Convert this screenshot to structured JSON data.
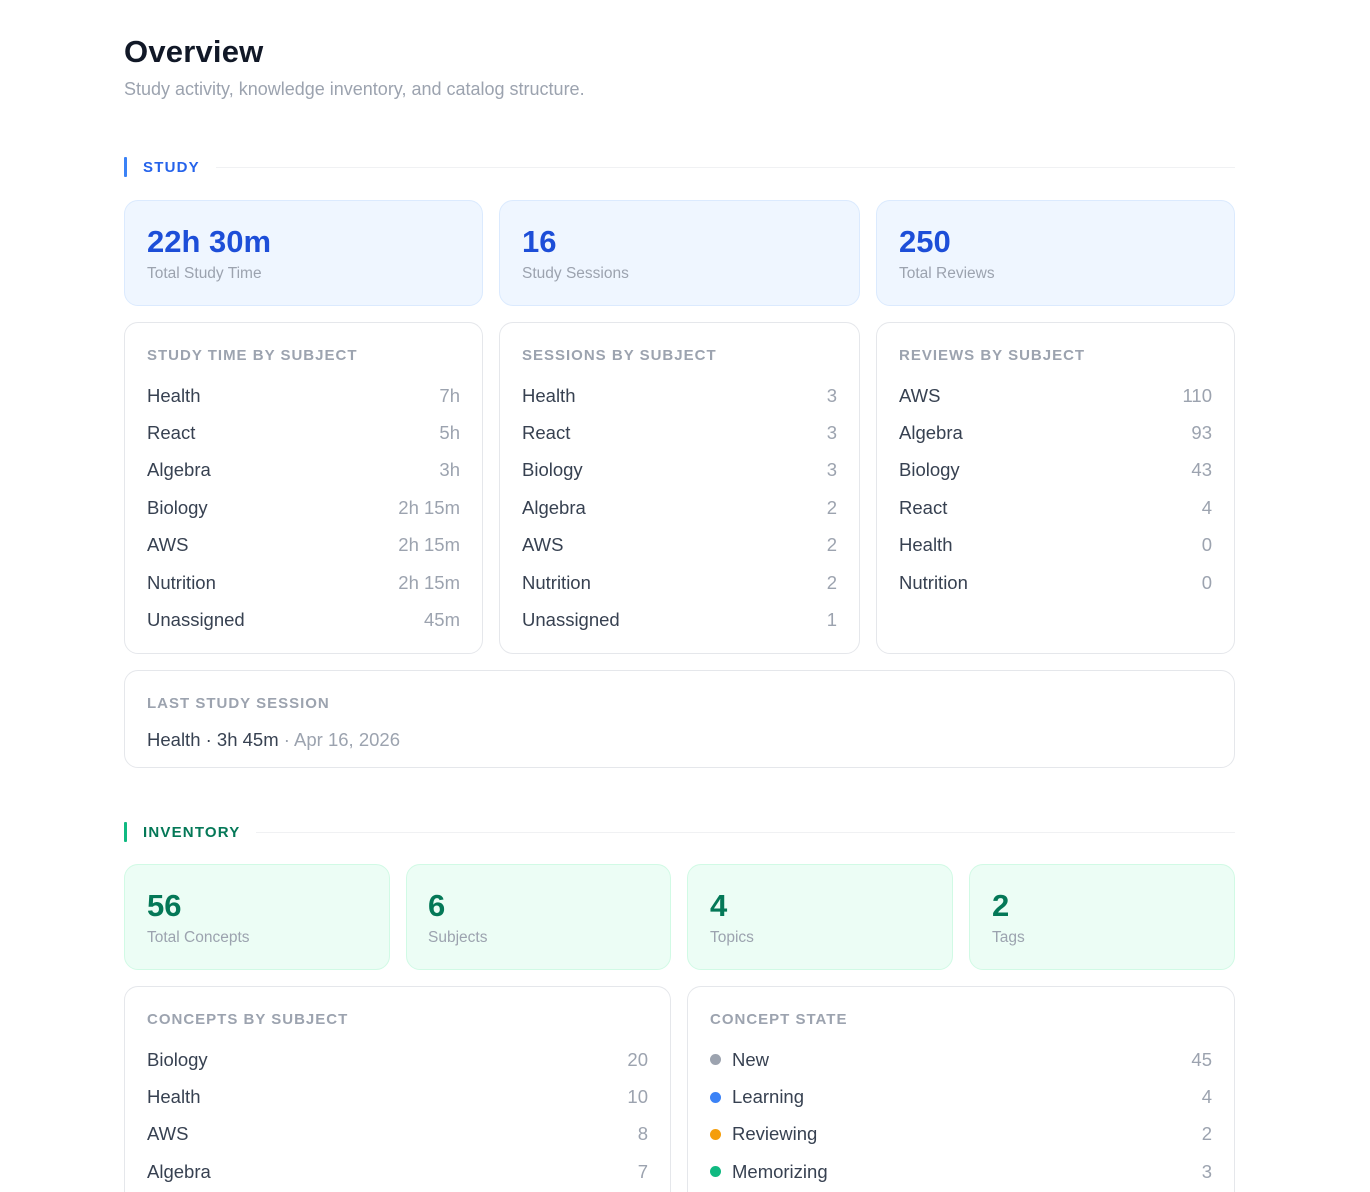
{
  "header": {
    "title": "Overview",
    "subtitle": "Study activity, knowledge inventory, and catalog structure."
  },
  "study": {
    "section_label": "STUDY",
    "stats": [
      {
        "value": "22h 30m",
        "label": "Total Study Time"
      },
      {
        "value": "16",
        "label": "Study Sessions"
      },
      {
        "value": "250",
        "label": "Total Reviews"
      }
    ],
    "time_by_subject": {
      "title": "STUDY TIME BY SUBJECT",
      "rows": [
        {
          "name": "Health",
          "value": "7h"
        },
        {
          "name": "React",
          "value": "5h"
        },
        {
          "name": "Algebra",
          "value": "3h"
        },
        {
          "name": "Biology",
          "value": "2h 15m"
        },
        {
          "name": "AWS",
          "value": "2h 15m"
        },
        {
          "name": "Nutrition",
          "value": "2h 15m"
        },
        {
          "name": "Unassigned",
          "value": "45m"
        }
      ]
    },
    "sessions_by_subject": {
      "title": "SESSIONS BY SUBJECT",
      "rows": [
        {
          "name": "Health",
          "value": "3"
        },
        {
          "name": "React",
          "value": "3"
        },
        {
          "name": "Biology",
          "value": "3"
        },
        {
          "name": "Algebra",
          "value": "2"
        },
        {
          "name": "AWS",
          "value": "2"
        },
        {
          "name": "Nutrition",
          "value": "2"
        },
        {
          "name": "Unassigned",
          "value": "1"
        }
      ]
    },
    "reviews_by_subject": {
      "title": "REVIEWS BY SUBJECT",
      "rows": [
        {
          "name": "AWS",
          "value": "110"
        },
        {
          "name": "Algebra",
          "value": "93"
        },
        {
          "name": "Biology",
          "value": "43"
        },
        {
          "name": "React",
          "value": "4"
        },
        {
          "name": "Health",
          "value": "0"
        },
        {
          "name": "Nutrition",
          "value": "0"
        }
      ]
    },
    "last_session": {
      "title": "LAST STUDY SESSION",
      "summary": "Health · 3h 45m",
      "date": " · Apr 16, 2026"
    }
  },
  "inventory": {
    "section_label": "INVENTORY",
    "stats": [
      {
        "value": "56",
        "label": "Total Concepts"
      },
      {
        "value": "6",
        "label": "Subjects"
      },
      {
        "value": "4",
        "label": "Topics"
      },
      {
        "value": "2",
        "label": "Tags"
      }
    ],
    "concepts_by_subject": {
      "title": "CONCEPTS BY SUBJECT",
      "rows": [
        {
          "name": "Biology",
          "value": "20"
        },
        {
          "name": "Health",
          "value": "10"
        },
        {
          "name": "AWS",
          "value": "8"
        },
        {
          "name": "Algebra",
          "value": "7"
        }
      ]
    },
    "concept_state": {
      "title": "CONCEPT STATE",
      "rows": [
        {
          "name": "New",
          "value": "45",
          "color": "#9ca3af"
        },
        {
          "name": "Learning",
          "value": "4",
          "color": "#3b82f6"
        },
        {
          "name": "Reviewing",
          "value": "2",
          "color": "#f59e0b"
        },
        {
          "name": "Memorizing",
          "value": "3",
          "color": "#10b981"
        }
      ]
    }
  },
  "colors": {
    "study_accent": "#3b82f6",
    "study_label": "#2563eb",
    "inventory_accent": "#10b981",
    "inventory_label": "#047857"
  }
}
